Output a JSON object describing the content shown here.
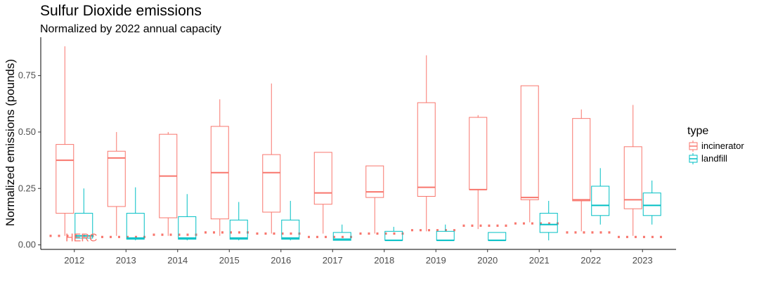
{
  "chart_data": {
    "type": "boxplot",
    "title": "Sulfur Dioxide emissions",
    "subtitle": "Normalized by 2022 annual capacity",
    "xlabel": "",
    "ylabel": "Normalized emissions (pounds)",
    "ylim": [
      -0.02,
      0.92
    ],
    "y_ticks": [
      0.0,
      0.25,
      0.5,
      0.75
    ],
    "y_tick_labels": [
      "0.00",
      "0.25",
      "0.50",
      "0.75"
    ],
    "categories": [
      "2012",
      "2013",
      "2014",
      "2015",
      "2016",
      "2017",
      "2018",
      "2019",
      "2020",
      "2021",
      "2022",
      "2023"
    ],
    "grid": false,
    "legend": {
      "title": "type",
      "placement": "right"
    },
    "series": [
      {
        "name": "incinerator",
        "color": "#F8766D",
        "boxes": [
          {
            "min": 0.04,
            "q1": 0.14,
            "median": 0.375,
            "q3": 0.445,
            "max": 0.88
          },
          {
            "min": 0.04,
            "q1": 0.17,
            "median": 0.385,
            "q3": 0.415,
            "max": 0.5
          },
          {
            "min": 0.04,
            "q1": 0.12,
            "median": 0.305,
            "q3": 0.49,
            "max": 0.5
          },
          {
            "min": 0.04,
            "q1": 0.115,
            "median": 0.32,
            "q3": 0.525,
            "max": 0.645
          },
          {
            "min": 0.05,
            "q1": 0.145,
            "median": 0.32,
            "q3": 0.4,
            "max": 0.715
          },
          {
            "min": 0.05,
            "q1": 0.18,
            "median": 0.23,
            "q3": 0.41,
            "max": 0.41
          },
          {
            "min": 0.05,
            "q1": 0.21,
            "median": 0.235,
            "q3": 0.35,
            "max": 0.35
          },
          {
            "min": 0.06,
            "q1": 0.215,
            "median": 0.255,
            "q3": 0.63,
            "max": 0.84
          },
          {
            "min": 0.07,
            "q1": 0.245,
            "median": 0.245,
            "q3": 0.565,
            "max": 0.575
          },
          {
            "min": 0.1,
            "q1": 0.2,
            "median": 0.21,
            "q3": 0.705,
            "max": 0.705
          },
          {
            "min": 0.06,
            "q1": 0.195,
            "median": 0.2,
            "q3": 0.56,
            "max": 0.6
          },
          {
            "min": 0.04,
            "q1": 0.16,
            "median": 0.2,
            "q3": 0.435,
            "max": 0.62
          }
        ]
      },
      {
        "name": "landfill",
        "color": "#00BFC4",
        "boxes": [
          {
            "min": 0.03,
            "q1": 0.03,
            "median": 0.04,
            "q3": 0.14,
            "max": 0.25
          },
          {
            "min": 0.02,
            "q1": 0.025,
            "median": 0.03,
            "q3": 0.14,
            "max": 0.255
          },
          {
            "min": 0.02,
            "q1": 0.025,
            "median": 0.03,
            "q3": 0.125,
            "max": 0.225
          },
          {
            "min": 0.02,
            "q1": 0.025,
            "median": 0.03,
            "q3": 0.11,
            "max": 0.19
          },
          {
            "min": 0.02,
            "q1": 0.025,
            "median": 0.03,
            "q3": 0.11,
            "max": 0.195
          },
          {
            "min": 0.02,
            "q1": 0.02,
            "median": 0.025,
            "q3": 0.055,
            "max": 0.09
          },
          {
            "min": 0.02,
            "q1": 0.02,
            "median": 0.02,
            "q3": 0.06,
            "max": 0.08
          },
          {
            "min": 0.02,
            "q1": 0.02,
            "median": 0.02,
            "q3": 0.06,
            "max": 0.09
          },
          {
            "min": 0.02,
            "q1": 0.02,
            "median": 0.02,
            "q3": 0.055,
            "max": 0.055
          },
          {
            "min": 0.02,
            "q1": 0.055,
            "median": 0.09,
            "q3": 0.14,
            "max": 0.195
          },
          {
            "min": 0.09,
            "q1": 0.13,
            "median": 0.175,
            "q3": 0.26,
            "max": 0.34
          },
          {
            "min": 0.09,
            "q1": 0.13,
            "median": 0.175,
            "q3": 0.23,
            "max": 0.285
          }
        ]
      }
    ],
    "reference_lines": {
      "color": "#F8766D",
      "style": "dotted",
      "values": [
        0.04,
        0.035,
        0.045,
        0.055,
        0.05,
        0.035,
        0.05,
        0.065,
        0.085,
        0.095,
        0.055,
        0.035
      ]
    },
    "annotations": [
      {
        "text": "HERC",
        "x_category": "2012",
        "y": 0.035,
        "color": "#F8766D"
      }
    ]
  }
}
